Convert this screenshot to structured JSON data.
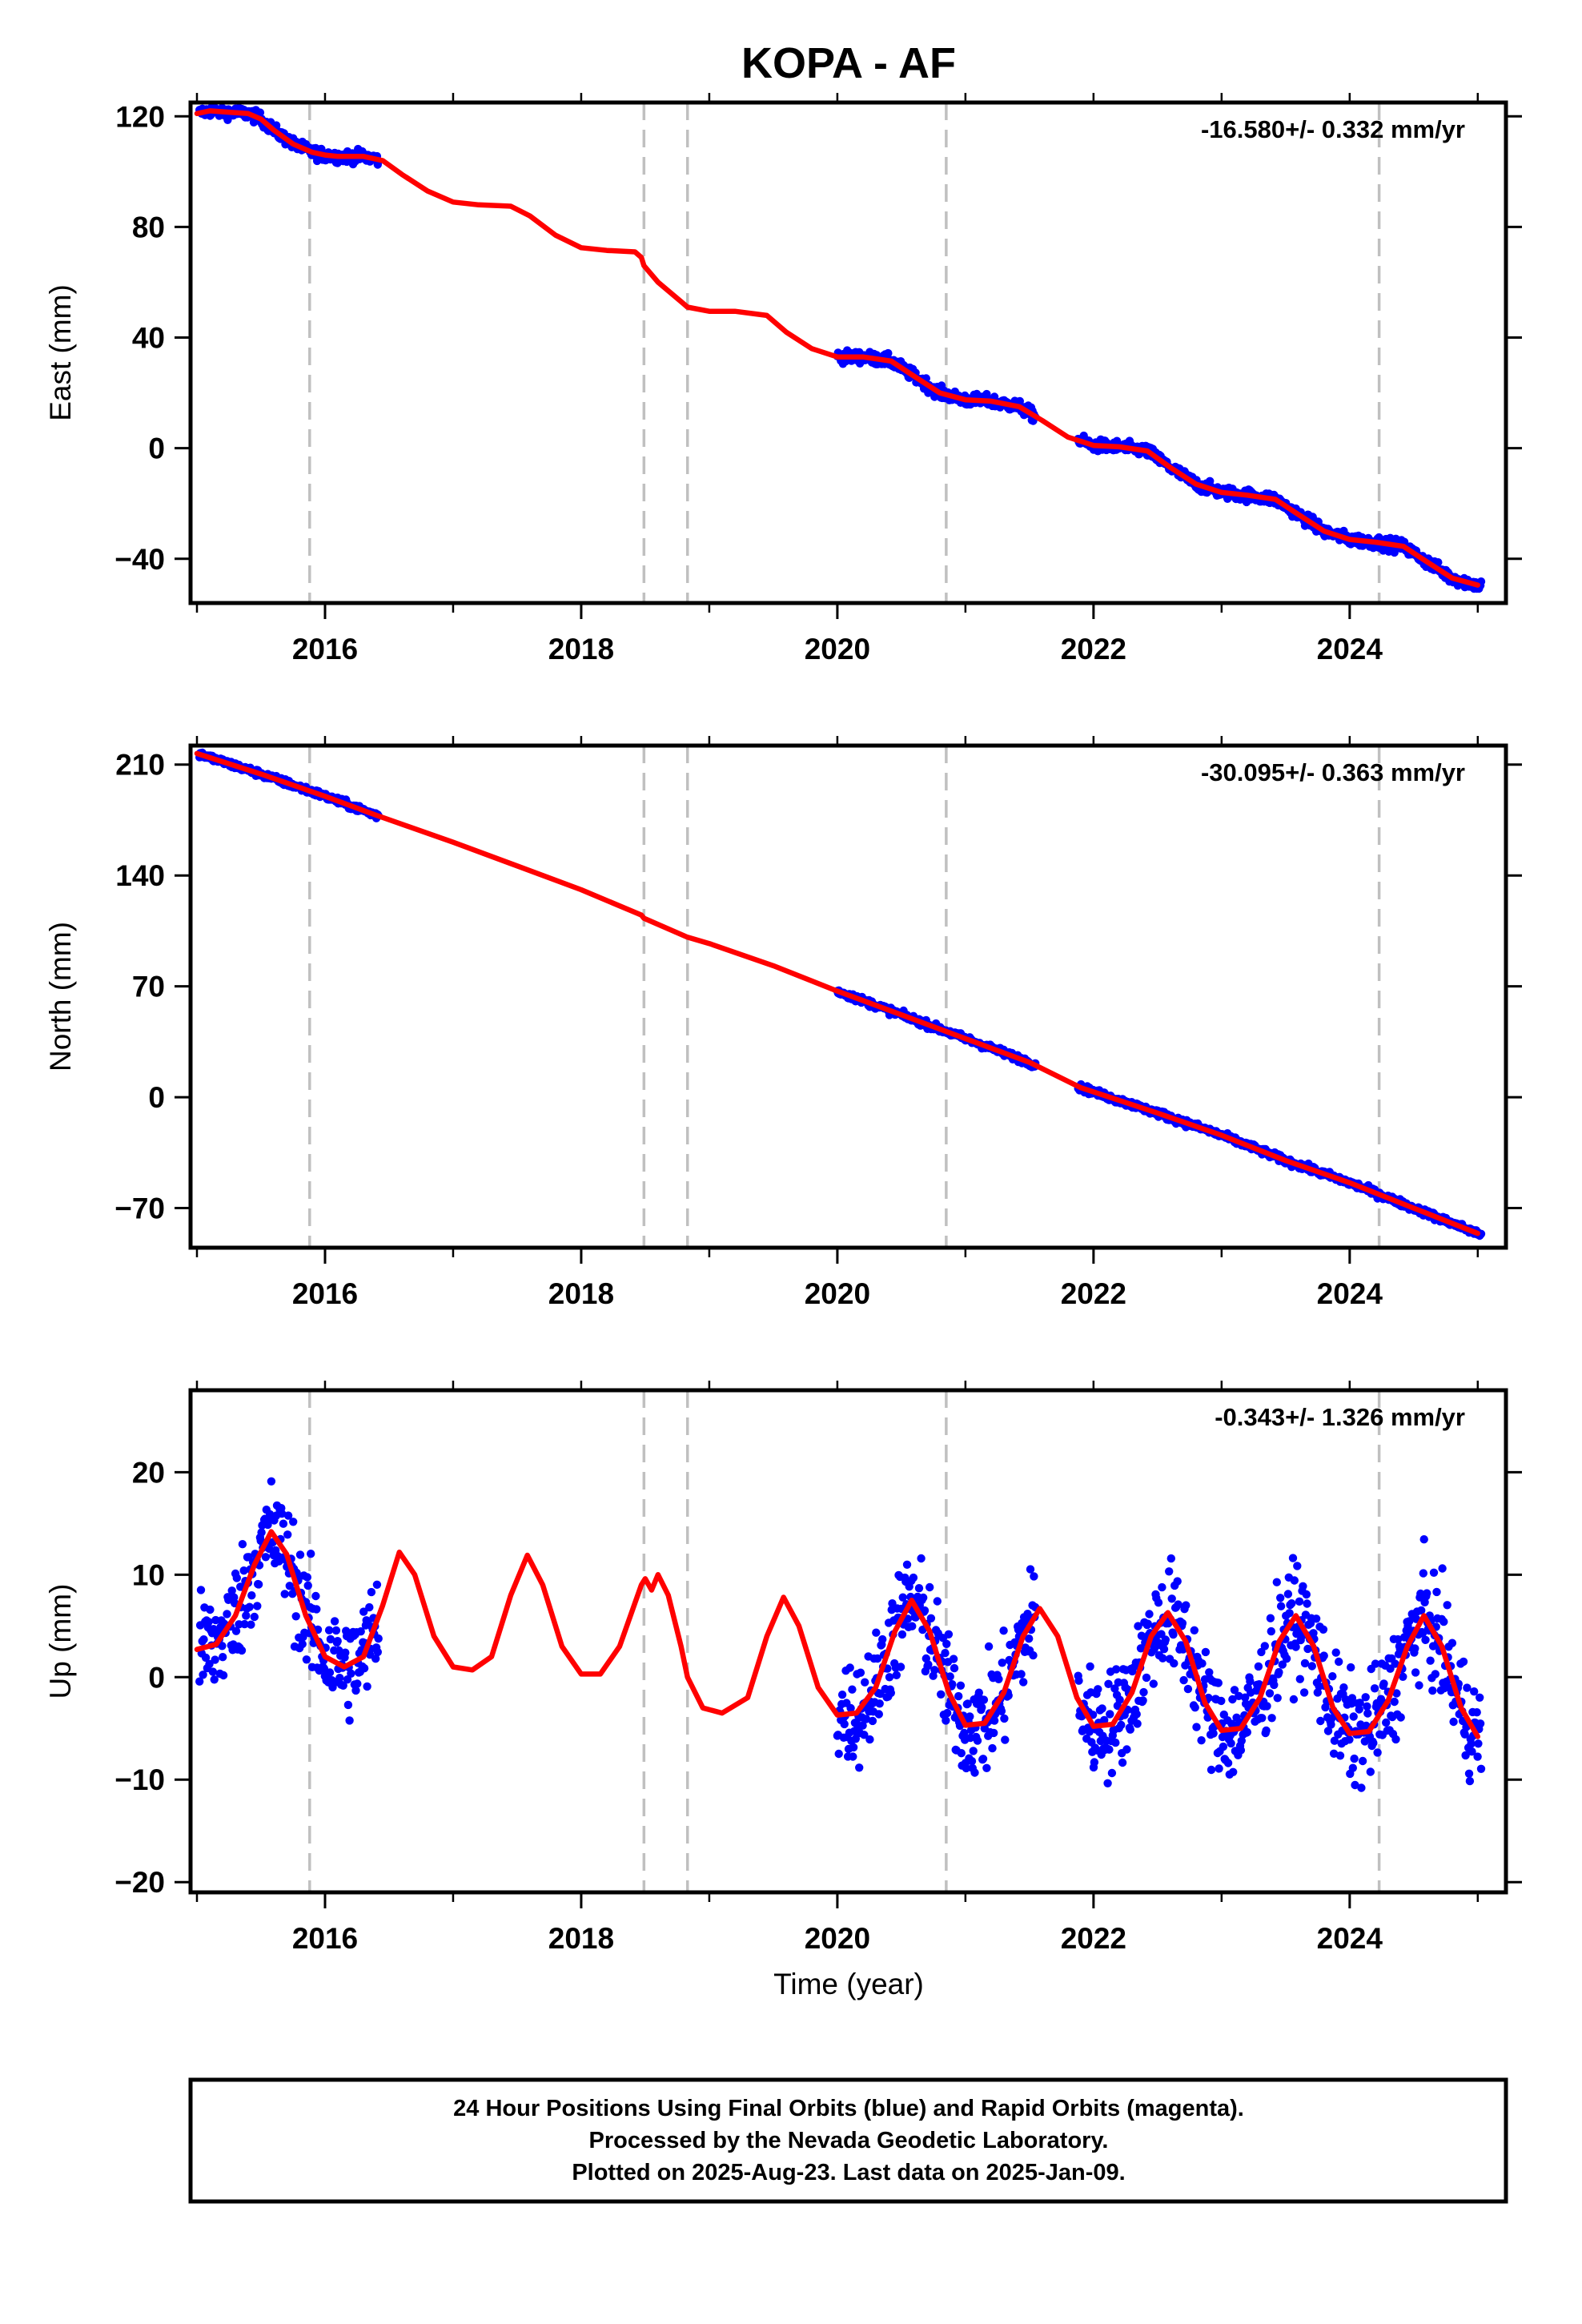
{
  "title": "KOPA - AF",
  "xlabel": "Time (year)",
  "colors": {
    "data_points": "#0000ff",
    "model_line": "#ff0000",
    "breaks": "#c0c0c0",
    "frame": "#000000"
  },
  "footer": {
    "line1": "24 Hour Positions Using Final Orbits (blue) and Rapid Orbits (magenta).",
    "line2": "Processed by the Nevada Geodetic Laboratory.",
    "line3": "Plotted on 2025-Aug-23. Last data on 2025-Jan-09."
  },
  "chart_data": [
    {
      "type": "scatter",
      "component": "East",
      "ylabel": "East (mm)",
      "rate_label": "-16.580+/- 0.332 mm/yr",
      "xlim": [
        2014.95,
        2025.22
      ],
      "ylim": [
        -56,
        125
      ],
      "x_ticks": [
        "2016",
        "2018",
        "2020",
        "2022",
        "2024"
      ],
      "y_ticks": [
        "120",
        "80",
        "40",
        "0",
        "−40"
      ],
      "y_tick_values": [
        120,
        80,
        40,
        0,
        -40
      ],
      "break_lines": [
        2015.88,
        2018.49,
        2018.83,
        2020.85,
        2024.23
      ],
      "data_segments": [
        [
          2015.02,
          2016.42
        ],
        [
          2020.0,
          2021.55
        ],
        [
          2021.88,
          2025.03
        ]
      ],
      "model_line": [
        [
          2015.0,
          121
        ],
        [
          2015.1,
          122
        ],
        [
          2015.25,
          121.5
        ],
        [
          2015.4,
          121
        ],
        [
          2015.5,
          119
        ],
        [
          2015.6,
          115
        ],
        [
          2015.75,
          110
        ],
        [
          2015.9,
          107
        ],
        [
          2016.0,
          106
        ],
        [
          2016.1,
          105.5
        ],
        [
          2016.2,
          105.5
        ],
        [
          2016.3,
          105.5
        ],
        [
          2016.45,
          104
        ],
        [
          2016.6,
          99
        ],
        [
          2016.8,
          93
        ],
        [
          2017.0,
          89
        ],
        [
          2017.2,
          88
        ],
        [
          2017.45,
          87.5
        ],
        [
          2017.6,
          84
        ],
        [
          2017.8,
          77
        ],
        [
          2018.0,
          72.5
        ],
        [
          2018.2,
          71.5
        ],
        [
          2018.42,
          71
        ],
        [
          2018.47,
          69
        ],
        [
          2018.49,
          66
        ],
        [
          2018.6,
          60
        ],
        [
          2018.78,
          53
        ],
        [
          2018.83,
          51
        ],
        [
          2019.0,
          49.5
        ],
        [
          2019.2,
          49.5
        ],
        [
          2019.45,
          48
        ],
        [
          2019.6,
          42
        ],
        [
          2019.8,
          36
        ],
        [
          2020.0,
          33
        ],
        [
          2020.2,
          33
        ],
        [
          2020.42,
          31.5
        ],
        [
          2020.6,
          26
        ],
        [
          2020.8,
          20
        ],
        [
          2021.0,
          17.5
        ],
        [
          2021.2,
          17
        ],
        [
          2021.42,
          15
        ],
        [
          2021.6,
          10
        ],
        [
          2021.8,
          4
        ],
        [
          2022.0,
          1
        ],
        [
          2022.2,
          0.5
        ],
        [
          2022.42,
          -1
        ],
        [
          2022.6,
          -7
        ],
        [
          2022.8,
          -13
        ],
        [
          2023.0,
          -16
        ],
        [
          2023.2,
          -17
        ],
        [
          2023.42,
          -18.5
        ],
        [
          2023.6,
          -24
        ],
        [
          2023.8,
          -30
        ],
        [
          2024.0,
          -33
        ],
        [
          2024.2,
          -34
        ],
        [
          2024.42,
          -35.5
        ],
        [
          2024.6,
          -41
        ],
        [
          2024.8,
          -47
        ],
        [
          2025.0,
          -49.5
        ]
      ],
      "noise_amplitude": 2
    },
    {
      "type": "scatter",
      "component": "North",
      "ylabel": "North (mm)",
      "rate_label": "-30.095+/- 0.363 mm/yr",
      "xlim": [
        2014.95,
        2025.22
      ],
      "ylim": [
        -95,
        222
      ],
      "x_ticks": [
        "2016",
        "2018",
        "2020",
        "2022",
        "2024"
      ],
      "y_ticks": [
        "210",
        "140",
        "70",
        "0",
        "−70"
      ],
      "y_tick_values": [
        210,
        140,
        70,
        0,
        -70
      ],
      "break_lines": [
        2015.88,
        2018.49,
        2018.83,
        2020.85,
        2024.23
      ],
      "data_segments": [
        [
          2015.02,
          2016.42
        ],
        [
          2020.0,
          2021.55
        ],
        [
          2021.88,
          2025.03
        ]
      ],
      "model_line": [
        [
          2015.0,
          217
        ],
        [
          2015.5,
          204
        ],
        [
          2016.0,
          190
        ],
        [
          2016.4,
          178
        ],
        [
          2017.0,
          161
        ],
        [
          2017.5,
          146
        ],
        [
          2018.0,
          131
        ],
        [
          2018.47,
          115
        ],
        [
          2018.49,
          113
        ],
        [
          2018.83,
          101
        ],
        [
          2019.0,
          97
        ],
        [
          2019.5,
          83
        ],
        [
          2020.0,
          67
        ],
        [
          2020.5,
          52
        ],
        [
          2021.0,
          37
        ],
        [
          2021.5,
          22
        ],
        [
          2021.9,
          6
        ],
        [
          2022.5,
          -10
        ],
        [
          2023.0,
          -24
        ],
        [
          2023.5,
          -40
        ],
        [
          2024.0,
          -54
        ],
        [
          2024.5,
          -70
        ],
        [
          2025.0,
          -86
        ]
      ],
      "noise_amplitude": 2
    },
    {
      "type": "scatter",
      "component": "Up",
      "ylabel": "Up (mm)",
      "rate_label": "-0.343+/- 1.326 mm/yr",
      "xlim": [
        2014.95,
        2025.22
      ],
      "ylim": [
        -21,
        28
      ],
      "x_ticks": [
        "2016",
        "2018",
        "2020",
        "2022",
        "2024"
      ],
      "y_ticks": [
        "20",
        "10",
        "0",
        "−10",
        "−20"
      ],
      "y_tick_values": [
        20,
        10,
        0,
        -10,
        -20
      ],
      "break_lines": [
        2015.88,
        2018.49,
        2018.83,
        2020.85,
        2024.23
      ],
      "data_segments": [
        [
          2015.02,
          2016.42
        ],
        [
          2020.0,
          2021.55
        ],
        [
          2021.88,
          2025.03
        ]
      ],
      "model_line": [
        [
          2015.0,
          2.7
        ],
        [
          2015.15,
          3.2
        ],
        [
          2015.3,
          6
        ],
        [
          2015.45,
          11
        ],
        [
          2015.58,
          14.2
        ],
        [
          2015.7,
          12
        ],
        [
          2015.85,
          6
        ],
        [
          2016.0,
          2
        ],
        [
          2016.15,
          1
        ],
        [
          2016.3,
          2
        ],
        [
          2016.45,
          7
        ],
        [
          2016.58,
          12.2
        ],
        [
          2016.7,
          10
        ],
        [
          2016.85,
          4
        ],
        [
          2017.0,
          1
        ],
        [
          2017.15,
          0.7
        ],
        [
          2017.3,
          2
        ],
        [
          2017.45,
          8
        ],
        [
          2017.58,
          11.9
        ],
        [
          2017.7,
          9
        ],
        [
          2017.85,
          3
        ],
        [
          2018.0,
          0.3
        ],
        [
          2018.15,
          0.3
        ],
        [
          2018.3,
          3
        ],
        [
          2018.47,
          9
        ],
        [
          2018.5,
          9.6
        ],
        [
          2018.55,
          8.5
        ],
        [
          2018.6,
          10
        ],
        [
          2018.68,
          8
        ],
        [
          2018.78,
          3
        ],
        [
          2018.83,
          0
        ],
        [
          2018.95,
          -3
        ],
        [
          2019.1,
          -3.5
        ],
        [
          2019.3,
          -2
        ],
        [
          2019.45,
          4
        ],
        [
          2019.58,
          7.8
        ],
        [
          2019.7,
          5
        ],
        [
          2019.85,
          -1
        ],
        [
          2020.0,
          -3.7
        ],
        [
          2020.15,
          -3.5
        ],
        [
          2020.3,
          -1
        ],
        [
          2020.45,
          4.5
        ],
        [
          2020.58,
          7.5
        ],
        [
          2020.72,
          4.5
        ],
        [
          2020.87,
          -1.5
        ],
        [
          2021.0,
          -4.7
        ],
        [
          2021.15,
          -4.5
        ],
        [
          2021.3,
          -1.5
        ],
        [
          2021.45,
          4
        ],
        [
          2021.58,
          6.7
        ],
        [
          2021.72,
          4
        ],
        [
          2021.87,
          -2
        ],
        [
          2022.0,
          -4.8
        ],
        [
          2022.15,
          -4.6
        ],
        [
          2022.3,
          -1.5
        ],
        [
          2022.45,
          4
        ],
        [
          2022.58,
          6.3
        ],
        [
          2022.72,
          3.5
        ],
        [
          2022.87,
          -2.5
        ],
        [
          2023.0,
          -5.2
        ],
        [
          2023.15,
          -5
        ],
        [
          2023.3,
          -2
        ],
        [
          2023.45,
          3.5
        ],
        [
          2023.58,
          6
        ],
        [
          2023.72,
          3
        ],
        [
          2023.87,
          -3
        ],
        [
          2024.0,
          -5.5
        ],
        [
          2024.15,
          -5.3
        ],
        [
          2024.3,
          -2.3
        ],
        [
          2024.45,
          3
        ],
        [
          2024.58,
          6
        ],
        [
          2024.72,
          3
        ],
        [
          2024.87,
          -3
        ],
        [
          2025.0,
          -5.8
        ]
      ],
      "noise_amplitude": 4.8
    }
  ]
}
